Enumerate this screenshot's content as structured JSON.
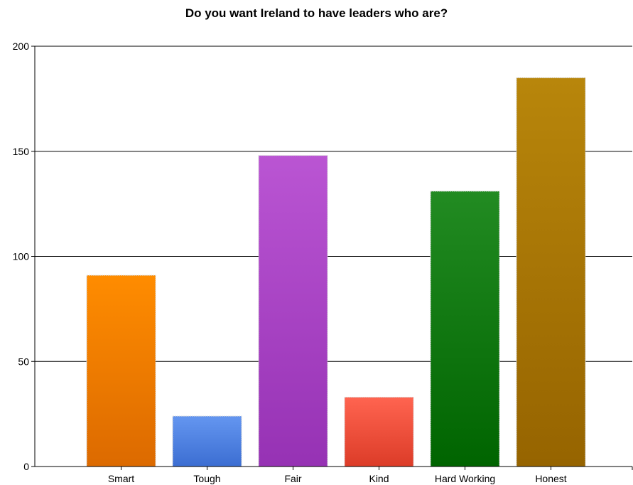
{
  "chart_data": {
    "type": "bar",
    "title": "Do you want Ireland to have leaders who are?",
    "xlabel": "",
    "ylabel": "",
    "categories": [
      "Smart",
      "Tough",
      "Fair",
      "Kind",
      "Hard Working",
      "Honest"
    ],
    "values": [
      91,
      24,
      148,
      33,
      131,
      185
    ],
    "colors": [
      [
        "#ff8c00",
        "#dc6a00"
      ],
      [
        "#6496f0",
        "#3c6ed2"
      ],
      [
        "#ba55d3",
        "#9632b4"
      ],
      [
        "#ff6450",
        "#dc3c28"
      ],
      [
        "#228b22",
        "#006400"
      ],
      [
        "#b8860b",
        "#966400"
      ]
    ],
    "yticks": [
      0,
      50,
      100,
      150,
      200
    ],
    "ylim": [
      0,
      200
    ],
    "grid": true,
    "legend": "none"
  }
}
